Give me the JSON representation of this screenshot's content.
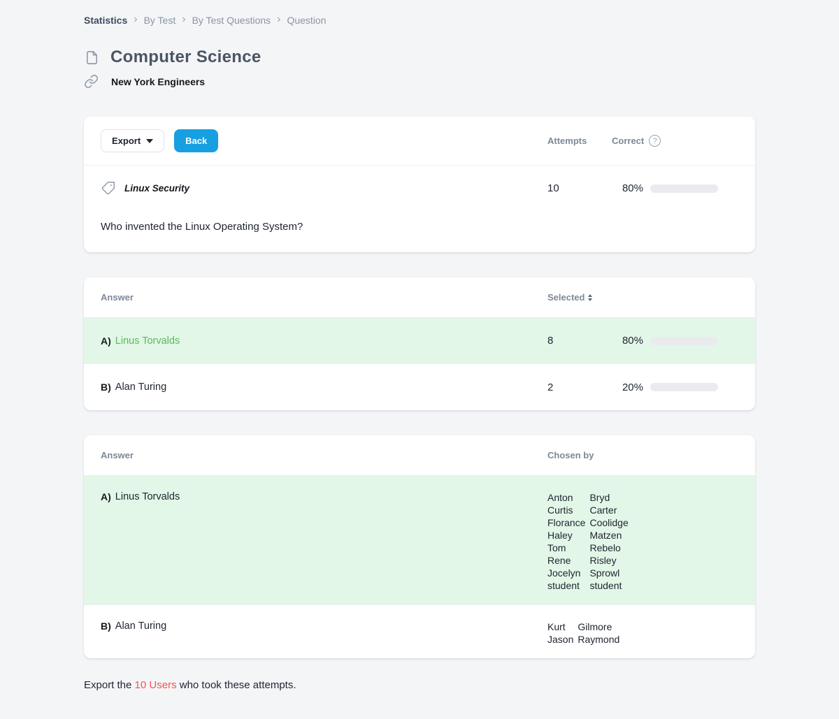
{
  "breadcrumb": {
    "separator": "›",
    "items": [
      {
        "label": "Statistics"
      },
      {
        "label": "By Test"
      },
      {
        "label": "By Test Questions"
      },
      {
        "label": "Question"
      }
    ]
  },
  "header": {
    "title": "Computer Science",
    "subtitle": "New York Engineers"
  },
  "question_card": {
    "export_label": "Export",
    "back_label": "Back",
    "attempts_header": "Attempts",
    "correct_header": "Correct",
    "help_icon": "?",
    "tag_name": "Linux Security",
    "attempts": "10",
    "correct_pct": "80%",
    "question": "Who invented the Linux Operating System?"
  },
  "selected_card": {
    "answer_header": "Answer",
    "selected_header": "Selected",
    "rows": [
      {
        "letter": "A)",
        "text": "Linus Torvalds",
        "selected": "8",
        "pct": "80%"
      },
      {
        "letter": "B)",
        "text": "Alan Turing",
        "selected": "2",
        "pct": "20%"
      }
    ]
  },
  "chosen_card": {
    "answer_header": "Answer",
    "chosen_header": "Chosen by",
    "rows": [
      {
        "letter": "A)",
        "text": "Linus Torvalds",
        "users": [
          [
            "Anton",
            "Bryd"
          ],
          [
            "Curtis",
            "Carter"
          ],
          [
            "Florance",
            "Coolidge"
          ],
          [
            "Haley",
            "Matzen"
          ],
          [
            "Tom",
            "Rebelo"
          ],
          [
            "Rene",
            "Risley"
          ],
          [
            "Jocelyn",
            "Sprowl"
          ],
          [
            "student",
            "student"
          ]
        ]
      },
      {
        "letter": "B)",
        "text": "Alan Turing",
        "users": [
          [
            "Kurt",
            "Gilmore"
          ],
          [
            "Jason",
            "Raymond"
          ]
        ]
      }
    ]
  },
  "footer": {
    "prefix": "Export the ",
    "link": "10 Users",
    "suffix": " who took these attempts."
  },
  "colors": {
    "accent_blue": "#189fe2",
    "progress_green": "#0fca90",
    "correct_row_bg": "#e2f7e7",
    "correct_text": "#5cb85c",
    "alert_red": "#fa5151",
    "page_bg": "#f4f5f7"
  }
}
